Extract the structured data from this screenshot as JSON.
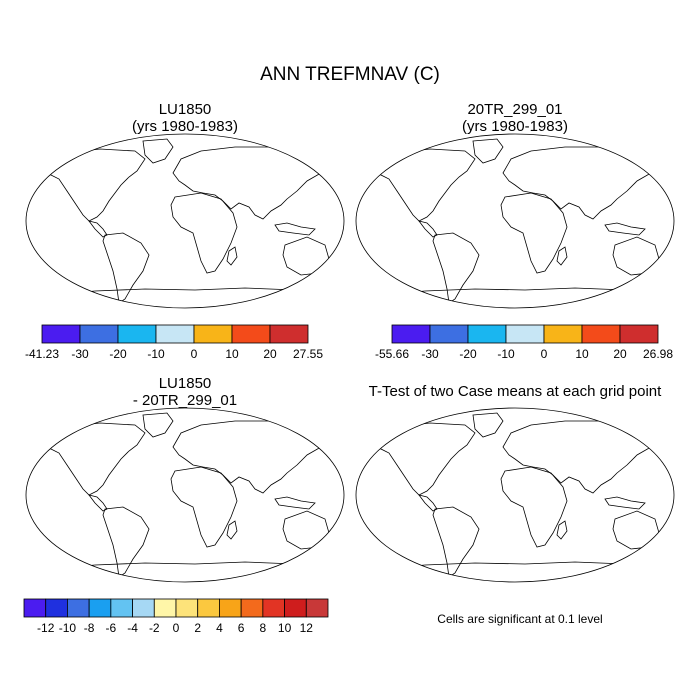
{
  "figure": {
    "title": "ANN TREFMNAV (C)"
  },
  "panels": [
    {
      "title_line1": "LU1850",
      "title_line2": "(yrs 1980-1983)"
    },
    {
      "title_line1": "20TR_299_01",
      "title_line2": "(yrs 1980-1983)"
    },
    {
      "title_line1": "LU1850",
      "title_line2": "- 20TR_299_01"
    },
    {
      "title_line1": "T-Test of two Case means at each grid point",
      "title_line2": ""
    }
  ],
  "note": "Cells are significant at 0.1 level",
  "chart_data": [
    {
      "type": "heatmap",
      "title": "LU1850 (yrs 1980-1983)",
      "projection": "Robinson world map",
      "colorbar": {
        "tick_labels": [
          "-41.23",
          "-30",
          "-20",
          "-10",
          "0",
          "10",
          "20",
          "27.55"
        ],
        "colors": [
          "#4b1cf0",
          "#3d6fe2",
          "#1ab6f0",
          "#c7e6f5",
          "#f8b418",
          "#f34b1a",
          "#cf2e2e"
        ]
      }
    },
    {
      "type": "heatmap",
      "title": "20TR_299_01 (yrs 1980-1983)",
      "projection": "Robinson world map",
      "colorbar": {
        "tick_labels": [
          "-55.66",
          "-30",
          "-20",
          "-10",
          "0",
          "10",
          "20",
          "26.98"
        ],
        "colors": [
          "#4b1cf0",
          "#3d6fe2",
          "#1ab6f0",
          "#c7e6f5",
          "#f8b418",
          "#f34b1a",
          "#cf2e2e"
        ]
      }
    },
    {
      "type": "heatmap",
      "title": "LU1850 - 20TR_299_01",
      "projection": "Robinson world map",
      "colorbar": {
        "tick_labels": [
          "-12",
          "-10",
          "-8",
          "-6",
          "-4",
          "-2",
          "0",
          "2",
          "4",
          "6",
          "8",
          "10",
          "12"
        ],
        "colors": [
          "#4b1cf0",
          "#1f30df",
          "#3d6fe2",
          "#1a9ff0",
          "#63c3f2",
          "#a6d8f4",
          "#fff6a8",
          "#fde37a",
          "#fbc83f",
          "#f8a418",
          "#f36a1c",
          "#e23424",
          "#cf1d1d",
          "#c83838"
        ]
      }
    },
    {
      "type": "heatmap",
      "title": "T-Test of two Case means at each grid point",
      "projection": "Robinson world map",
      "significance_level": 0.1,
      "significant_color": "#e8141a"
    }
  ]
}
